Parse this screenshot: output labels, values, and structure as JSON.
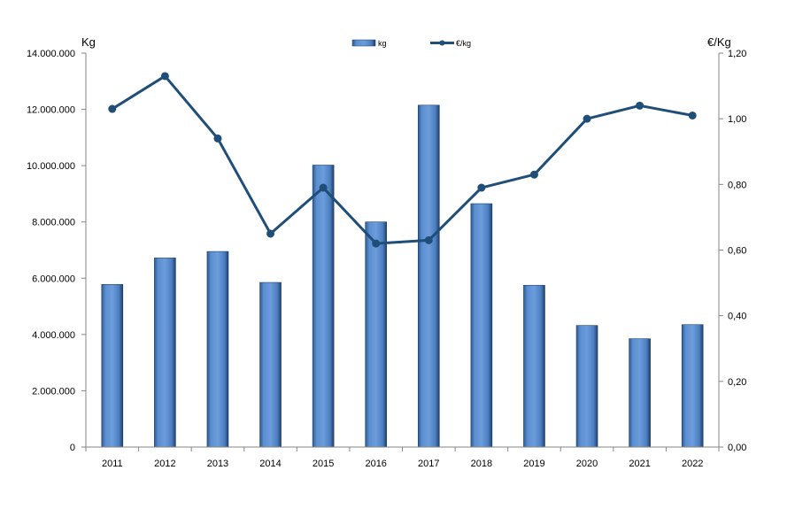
{
  "chart_data": {
    "type": "bar+line",
    "categories": [
      "2011",
      "2012",
      "2013",
      "2014",
      "2015",
      "2016",
      "2017",
      "2018",
      "2019",
      "2020",
      "2021",
      "2022"
    ],
    "series": [
      {
        "name": "kg",
        "type": "bar",
        "axis": "left",
        "color": "#4F81BD",
        "values": [
          5780000,
          6720000,
          6950000,
          5850000,
          10020000,
          8000000,
          12150000,
          8650000,
          5750000,
          4320000,
          3850000,
          4350000
        ]
      },
      {
        "name": "€/kg",
        "type": "line",
        "axis": "right",
        "color": "#1F4E79",
        "values": [
          1.03,
          1.13,
          0.94,
          0.65,
          0.79,
          0.62,
          0.63,
          0.79,
          0.83,
          1.0,
          1.04,
          1.01
        ]
      }
    ],
    "ylabel_left": "Kg",
    "ylabel_right": "€/Kg",
    "ylim_left": [
      0,
      14000000
    ],
    "ylim_right": [
      0,
      1.2
    ],
    "yticks_left": [
      "0",
      "2.000.000",
      "4.000.000",
      "6.000.000",
      "8.000.000",
      "10.000.000",
      "12.000.000",
      "14.000.000"
    ],
    "yticks_right": [
      "0,00",
      "0,20",
      "0,40",
      "0,60",
      "0,80",
      "1,00",
      "1,20"
    ],
    "grid": false,
    "legend_position": "top-center"
  }
}
